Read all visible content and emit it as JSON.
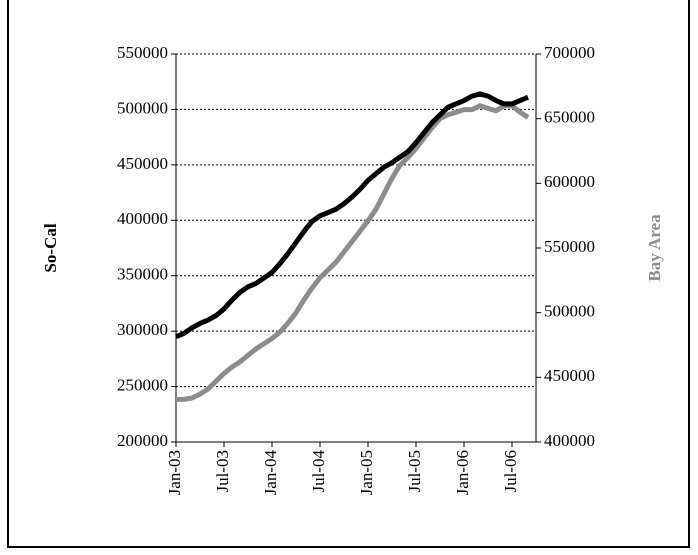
{
  "chart_data": {
    "type": "line",
    "y_label": "So-Cal",
    "y2_label": "Bay Area",
    "categories": [
      "Jan-03",
      null,
      null,
      null,
      null,
      null,
      "Jul-03",
      null,
      null,
      null,
      null,
      null,
      "Jan-04",
      null,
      null,
      null,
      null,
      null,
      "Jul-04",
      null,
      null,
      null,
      null,
      null,
      "Jan-05",
      null,
      null,
      null,
      null,
      null,
      "Jul-05",
      null,
      null,
      null,
      null,
      null,
      "Jan-06",
      null,
      null,
      null,
      null,
      null,
      "Jul-06",
      null,
      null
    ],
    "series": [
      {
        "name": "So-Cal",
        "color": "#000000",
        "values": [
          295000,
          298000,
          303000,
          307000,
          310000,
          314000,
          320000,
          328000,
          335000,
          340000,
          343000,
          348000,
          353000,
          361000,
          370000,
          380000,
          390000,
          399000,
          404000,
          407000,
          410000,
          415000,
          421000,
          428000,
          436000,
          442000,
          448000,
          452000,
          457000,
          462000,
          470000,
          479000,
          488000,
          495000,
          502000,
          505000,
          508000,
          512000,
          514000,
          512000,
          508000,
          505000,
          505000,
          508000,
          511000
        ]
      },
      {
        "name": "Bay Area",
        "color": "#8c8c8c",
        "axis": "y2",
        "values": [
          433000,
          433000,
          434000,
          437000,
          441000,
          447000,
          453000,
          458000,
          462000,
          467000,
          472000,
          476000,
          480000,
          485000,
          492000,
          500000,
          510000,
          519000,
          527000,
          533000,
          539000,
          547000,
          555000,
          563000,
          571000,
          580000,
          592000,
          604000,
          614000,
          620000,
          627000,
          635000,
          643000,
          650000,
          653000,
          655000,
          657000,
          657000,
          660000,
          658000,
          656000,
          660000,
          660000,
          655000,
          651000
        ]
      }
    ],
    "ylim": [
      200000,
      550000
    ],
    "yticks": [
      200000,
      250000,
      300000,
      350000,
      400000,
      450000,
      500000,
      550000
    ],
    "y2lim": [
      400000,
      700000
    ],
    "y2ticks": [
      400000,
      450000,
      500000,
      550000,
      600000,
      650000,
      700000
    ],
    "grid": true
  }
}
